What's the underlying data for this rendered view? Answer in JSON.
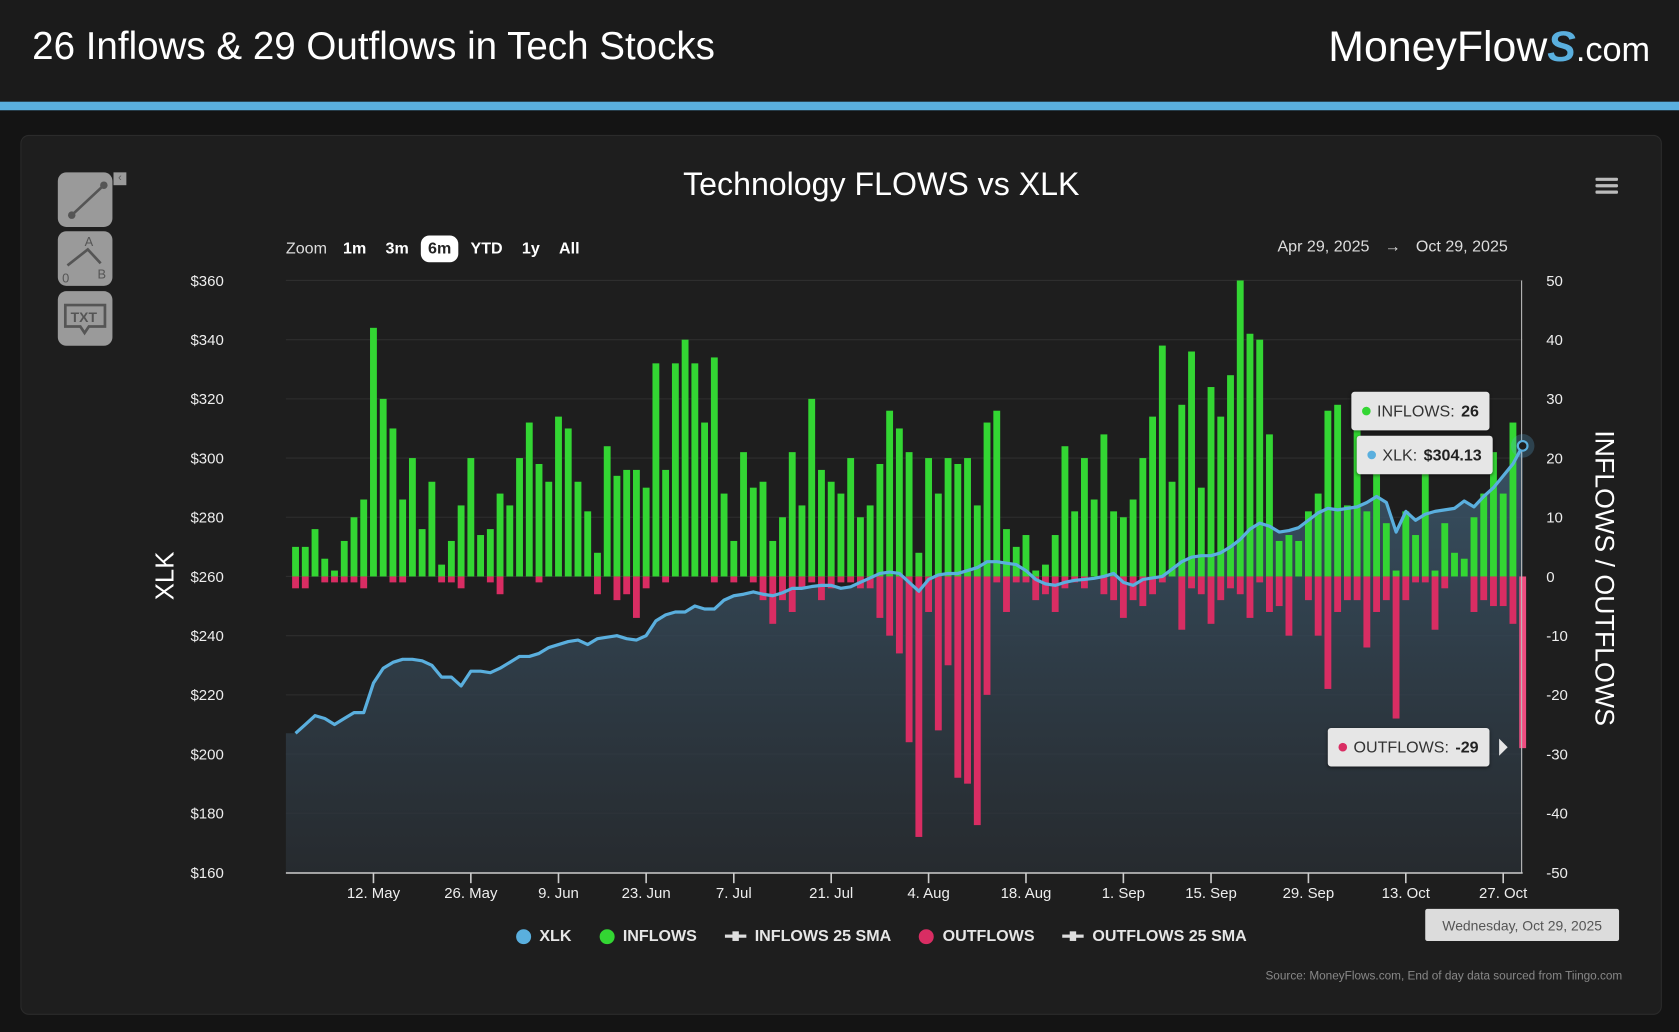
{
  "header": {
    "title": "26 Inflows & 29 Outflows in Tech Stocks",
    "logo_text": "MoneyFlows.com"
  },
  "toolbar": {
    "tools": [
      {
        "icon": "line-segment-icon"
      },
      {
        "icon": "abc-pattern-icon",
        "labels": [
          "A",
          "0",
          "B"
        ]
      },
      {
        "icon": "text-annotation-icon",
        "label": "TXT"
      }
    ]
  },
  "range_selector": {
    "label": "Zoom",
    "buttons": [
      "1m",
      "3m",
      "6m",
      "YTD",
      "1y",
      "All"
    ],
    "selected": "6m",
    "from": "Apr 29, 2025",
    "arrow": "→",
    "to": "Oct 29, 2025"
  },
  "tooltip": {
    "inflows_label": "INFLOWS:",
    "inflows_value": "26",
    "xlk_label": "XLK:",
    "xlk_value": "$304.13",
    "outflows_label": "OUTFLOWS:",
    "outflows_value": "-29",
    "date": "Wednesday, Oct 29, 2025"
  },
  "source": "Source: MoneyFlows.com, End of day data sourced from Tiingo.com",
  "colors": {
    "xlk": "#5aafde",
    "inflows": "#33d633",
    "outflows": "#d92d63",
    "accent": "#5aafde"
  },
  "chart_data": {
    "type": "bar+line",
    "title": "Technology FLOWS vs XLK",
    "ylabel_left": "XLK",
    "ylabel_right": "INFLOWS / OUTFLOWS",
    "ylim_left": [
      160,
      360
    ],
    "ylim_right": [
      -50,
      50
    ],
    "left_ticks": [
      "$160",
      "$180",
      "$200",
      "$220",
      "$240",
      "$260",
      "$280",
      "$300",
      "$320",
      "$340",
      "$360"
    ],
    "right_ticks": [
      "-50",
      "-40",
      "-30",
      "-20",
      "-10",
      "0",
      "10",
      "20",
      "30",
      "40",
      "50"
    ],
    "x_ticks": [
      {
        "label": "12. May",
        "date": "2025-05-12"
      },
      {
        "label": "26. May",
        "date": "2025-05-26"
      },
      {
        "label": "9. Jun",
        "date": "2025-06-09"
      },
      {
        "label": "23. Jun",
        "date": "2025-06-23"
      },
      {
        "label": "7. Jul",
        "date": "2025-07-07"
      },
      {
        "label": "21. Jul",
        "date": "2025-07-21"
      },
      {
        "label": "4. Aug",
        "date": "2025-08-04"
      },
      {
        "label": "18. Aug",
        "date": "2025-08-18"
      },
      {
        "label": "1. Sep",
        "date": "2025-09-01"
      },
      {
        "label": "15. Sep",
        "date": "2025-09-15"
      },
      {
        "label": "29. Sep",
        "date": "2025-09-29"
      },
      {
        "label": "13. Oct",
        "date": "2025-10-13"
      },
      {
        "label": "27. Oct",
        "date": "2025-10-27"
      }
    ],
    "grid": true,
    "legend_position": "bottom",
    "legend": [
      "XLK",
      "INFLOWS",
      "INFLOWS 25 SMA",
      "OUTFLOWS",
      "OUTFLOWS 25 SMA"
    ],
    "series": [
      {
        "name": "XLK",
        "type": "area",
        "values": [
          207,
          210,
          213,
          212,
          210,
          212,
          214,
          214,
          224,
          229,
          231,
          232,
          232,
          231.5,
          230,
          226,
          226,
          223,
          228,
          228,
          227.5,
          229,
          231,
          233,
          233,
          234,
          236,
          237,
          238,
          238.5,
          237,
          239,
          239.5,
          240,
          239,
          238.5,
          240,
          245,
          247,
          248,
          248,
          250,
          249,
          249,
          252,
          253.5,
          254,
          254.8,
          254,
          253.5,
          254.5,
          256,
          256,
          256.6,
          257,
          257,
          256,
          256.5,
          258,
          259.5,
          261,
          261.5,
          261,
          258,
          255,
          259,
          260.5,
          261,
          261,
          262,
          263,
          265,
          265,
          264.5,
          264,
          262,
          259,
          257.5,
          257,
          258,
          258.7,
          259,
          259.4,
          260,
          261,
          258,
          257,
          259,
          259.5,
          260,
          262.5,
          265,
          266.5,
          267,
          267,
          268,
          270,
          272.5,
          276,
          278,
          277,
          275,
          275.5,
          276.5,
          279,
          281.5,
          283,
          282.5,
          283,
          283.5,
          285,
          287,
          285,
          275,
          282,
          279,
          281,
          282,
          282.5,
          283,
          285.5,
          283.5,
          287,
          290,
          294,
          298,
          304.13
        ]
      },
      {
        "name": "INFLOWS",
        "type": "column",
        "values": [
          5,
          5,
          8,
          3,
          1,
          6,
          10,
          13,
          42,
          30,
          25,
          13,
          20,
          8,
          16,
          2,
          6,
          12,
          20,
          7,
          8,
          14,
          12,
          20,
          26,
          19,
          16,
          27,
          25,
          16,
          11,
          4,
          22,
          17,
          18,
          18,
          15,
          36,
          18,
          36,
          40,
          36,
          26,
          37,
          14,
          6,
          21,
          15,
          16,
          6,
          10,
          21,
          12,
          30,
          18,
          16,
          14,
          20,
          10,
          12,
          19,
          28,
          25,
          21,
          4,
          20,
          14,
          20,
          19,
          20,
          12,
          26,
          28,
          8,
          5,
          7,
          1,
          2,
          7,
          22,
          11,
          20,
          13,
          24,
          11,
          10,
          13,
          20,
          27,
          39,
          16,
          29,
          38,
          15,
          32,
          27,
          34,
          50,
          41,
          40,
          24,
          6,
          7,
          6,
          11,
          14,
          28,
          29,
          12,
          27,
          11,
          18,
          9,
          1,
          11,
          7,
          20,
          1,
          9,
          4,
          3,
          10,
          14,
          21,
          14,
          26
        ]
      },
      {
        "name": "OUTFLOWS",
        "type": "column",
        "values": [
          -2,
          -2,
          0,
          -1,
          -1,
          -1,
          -1,
          -2,
          0,
          0,
          -1,
          -1,
          0,
          0,
          0,
          -1,
          -1,
          -2,
          0,
          0,
          -1,
          -3,
          0,
          0,
          0,
          -1,
          0,
          0,
          0,
          0,
          0,
          -3,
          0,
          -4,
          -3,
          -7,
          -2,
          0,
          -1,
          0,
          0,
          0,
          0,
          -1,
          0,
          -1,
          0,
          -1,
          -4,
          -8,
          -4,
          -6,
          -2,
          -1,
          -4,
          -2,
          -1,
          -1,
          -2,
          -2,
          -7,
          -10,
          -13,
          -28,
          -44,
          -6,
          -26,
          -15,
          -34,
          -35,
          -42,
          -20,
          -1,
          -6,
          -1,
          -1,
          -4,
          -3,
          -6,
          -2,
          -1,
          -2,
          0,
          -3,
          -4,
          -7,
          -4,
          -5,
          -3,
          -1,
          0,
          -9,
          -2,
          -3,
          -8,
          -4,
          -2,
          -3,
          -7,
          -1,
          -6,
          -5,
          -10,
          0,
          -4,
          -10,
          -19,
          -6,
          -4,
          -4,
          -12,
          -6,
          -4,
          -24,
          -4,
          -1,
          -1,
          -9,
          -2,
          0,
          0,
          -6,
          -4,
          -5,
          -5,
          -8,
          -29
        ]
      }
    ]
  }
}
